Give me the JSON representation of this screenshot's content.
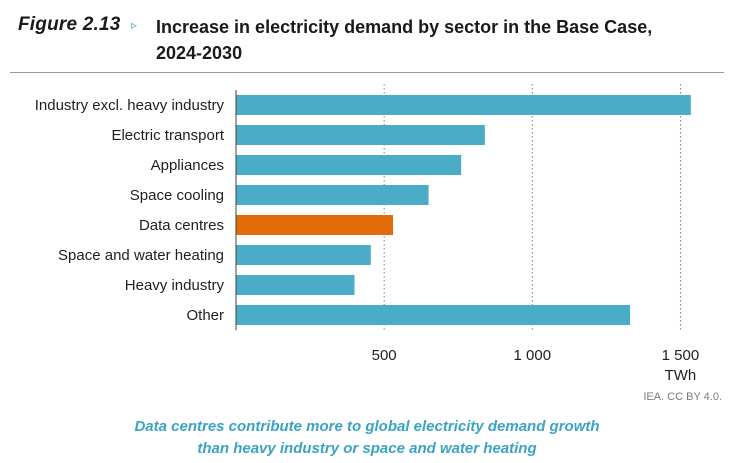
{
  "figure": {
    "label": "Figure 2.13",
    "arrow": "▹",
    "title_line1": "Increase in electricity demand by sector in the Base Case,",
    "title_line2": "2024-2030"
  },
  "credit": "IEA. CC BY 4.0.",
  "caption": {
    "line1": "Data centres contribute more to global electricity demand growth",
    "line2": "than heavy industry or space and water heating"
  },
  "colors": {
    "default_bar": "#4aacc6",
    "highlight_bar": "#e36c0a",
    "grid": "#7f7f7f"
  },
  "chart_data": {
    "type": "bar",
    "orientation": "horizontal",
    "title": "Increase in electricity demand by sector in the Base Case, 2024-2030",
    "categories": [
      "Industry excl. heavy industry",
      "Electric transport",
      "Appliances",
      "Space cooling",
      "Data centres",
      "Space and water heating",
      "Heavy industry",
      "Other"
    ],
    "values": [
      1535,
      840,
      760,
      650,
      530,
      455,
      400,
      1330
    ],
    "highlight_index": 4,
    "xlim": [
      0,
      1600
    ],
    "xticks": [
      500,
      1000,
      1500
    ],
    "xtick_labels": [
      "500",
      "1 000",
      "1 500"
    ],
    "xlabel": "TWh",
    "grid": "vertical dotted at ticks"
  }
}
